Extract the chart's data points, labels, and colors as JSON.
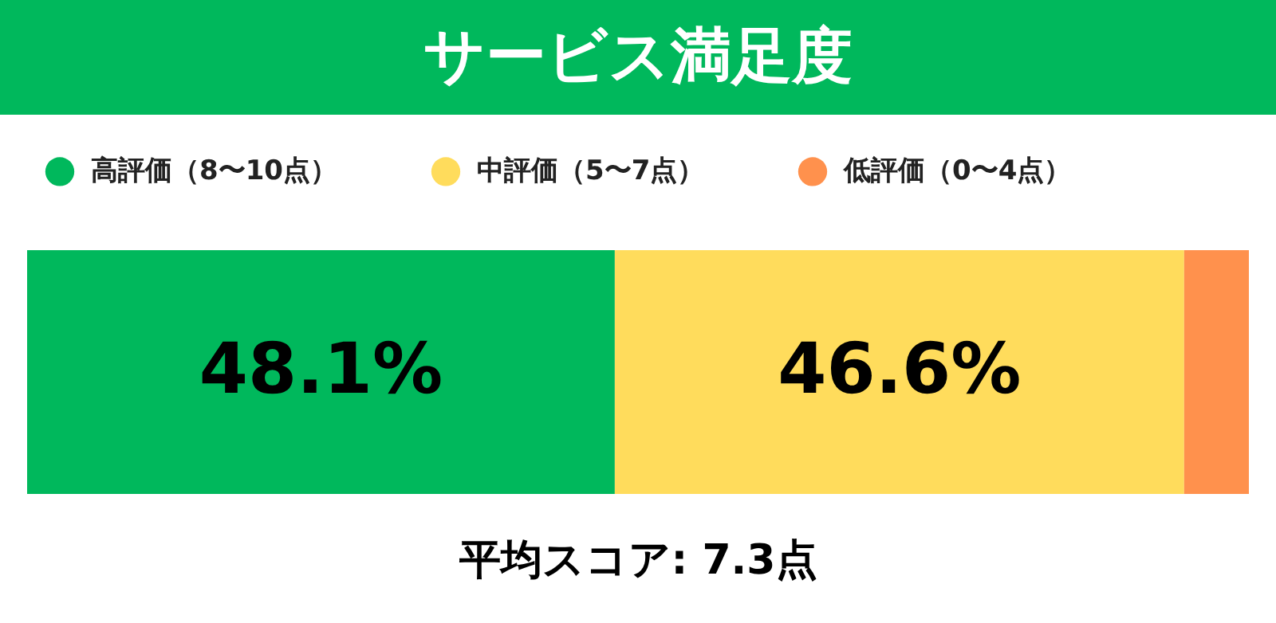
{
  "chart_data": {
    "type": "bar",
    "title": "サービス満足度",
    "orientation": "horizontal",
    "stacked": true,
    "categories": [
      null
    ],
    "xlim": [
      0,
      100
    ],
    "tick_labels": false,
    "legend": "top",
    "series": [
      {
        "name": "高評価（8〜10点）",
        "color": "#00b85c",
        "values": [
          48.1
        ],
        "value_labels": [
          "48.1%"
        ]
      },
      {
        "name": "中評価（5〜7点）",
        "color": "#ffdc5c",
        "values": [
          46.6
        ],
        "value_labels": [
          "46.6%"
        ]
      },
      {
        "name": "低評価（0〜4点）",
        "color": "#ff914d",
        "values": [
          5.3
        ],
        "value_labels": [
          null
        ]
      }
    ],
    "annotations": [
      "平均スコア: 7.3点"
    ]
  }
}
